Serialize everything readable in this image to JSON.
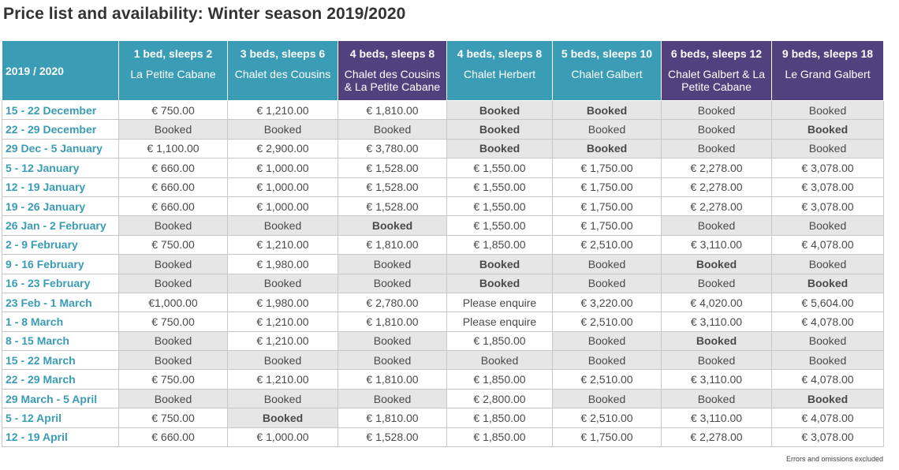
{
  "title": "Price list and availability: Winter season 2019/2020",
  "table": {
    "corner": "2019 / 2020",
    "columns": [
      {
        "beds": "1 bed, sleeps 2",
        "name": "La Petite Cabane",
        "color": "#3a9cb5"
      },
      {
        "beds": "3 beds, sleeps 6",
        "name": "Chalet des Cousins",
        "color": "#3a9cb5"
      },
      {
        "beds": "4 beds, sleeps 8",
        "name": "Chalet des Cousins & La Petite Cabane",
        "color": "#52417f"
      },
      {
        "beds": "4 beds, sleeps 8",
        "name": "Chalet Herbert",
        "color": "#3a9cb5"
      },
      {
        "beds": "5 beds, sleeps 10",
        "name": "Chalet Galbert",
        "color": "#3a9cb5"
      },
      {
        "beds": "6 beds, sleeps 12",
        "name": "Chalet Galbert & La Petite Cabane",
        "color": "#52417f"
      },
      {
        "beds": "9 beds, sleeps 18",
        "name": "Le Grand Galbert",
        "color": "#52417f"
      }
    ],
    "rows": [
      {
        "week": "15 - 22 December",
        "cells": [
          {
            "text": "€ 750.00",
            "shade": false,
            "bold": false
          },
          {
            "text": "€ 1,210.00",
            "shade": false,
            "bold": false
          },
          {
            "text": "€ 1,810.00",
            "shade": false,
            "bold": false
          },
          {
            "text": "Booked",
            "shade": true,
            "bold": true
          },
          {
            "text": "Booked",
            "shade": true,
            "bold": true
          },
          {
            "text": "Booked",
            "shade": true,
            "bold": false
          },
          {
            "text": "Booked",
            "shade": true,
            "bold": false
          }
        ]
      },
      {
        "week": "22 - 29 December",
        "cells": [
          {
            "text": "Booked",
            "shade": true,
            "bold": false
          },
          {
            "text": "Booked",
            "shade": true,
            "bold": false
          },
          {
            "text": "Booked",
            "shade": true,
            "bold": false
          },
          {
            "text": "Booked",
            "shade": true,
            "bold": true
          },
          {
            "text": "Booked",
            "shade": true,
            "bold": false
          },
          {
            "text": "Booked",
            "shade": true,
            "bold": false
          },
          {
            "text": "Booked",
            "shade": true,
            "bold": true
          }
        ]
      },
      {
        "week": "29 Dec - 5 January",
        "cells": [
          {
            "text": "€ 1,100.00",
            "shade": false,
            "bold": false
          },
          {
            "text": "€ 2,900.00",
            "shade": false,
            "bold": false
          },
          {
            "text": "€ 3,780.00",
            "shade": false,
            "bold": false
          },
          {
            "text": "Booked",
            "shade": true,
            "bold": true
          },
          {
            "text": "Booked",
            "shade": true,
            "bold": true
          },
          {
            "text": "Booked",
            "shade": true,
            "bold": false
          },
          {
            "text": "Booked",
            "shade": true,
            "bold": false
          }
        ]
      },
      {
        "week": "5 - 12 January",
        "cells": [
          {
            "text": "€ 660.00",
            "shade": false,
            "bold": false
          },
          {
            "text": "€ 1,000.00",
            "shade": false,
            "bold": false
          },
          {
            "text": "€ 1,528.00",
            "shade": false,
            "bold": false
          },
          {
            "text": "€ 1,550.00",
            "shade": false,
            "bold": false
          },
          {
            "text": "€ 1,750.00",
            "shade": false,
            "bold": false
          },
          {
            "text": "€ 2,278.00",
            "shade": false,
            "bold": false
          },
          {
            "text": "€ 3,078.00",
            "shade": false,
            "bold": false
          }
        ]
      },
      {
        "week": "12 - 19 January",
        "cells": [
          {
            "text": "€ 660.00",
            "shade": false,
            "bold": false
          },
          {
            "text": "€ 1,000.00",
            "shade": false,
            "bold": false
          },
          {
            "text": "€ 1,528.00",
            "shade": false,
            "bold": false
          },
          {
            "text": "€ 1,550.00",
            "shade": false,
            "bold": false
          },
          {
            "text": "€ 1,750.00",
            "shade": false,
            "bold": false
          },
          {
            "text": "€ 2,278.00",
            "shade": false,
            "bold": false
          },
          {
            "text": "€ 3,078.00",
            "shade": false,
            "bold": false
          }
        ]
      },
      {
        "week": "19 - 26 January",
        "cells": [
          {
            "text": "€ 660.00",
            "shade": false,
            "bold": false
          },
          {
            "text": "€ 1,000.00",
            "shade": false,
            "bold": false
          },
          {
            "text": "€ 1,528.00",
            "shade": false,
            "bold": false
          },
          {
            "text": "€ 1,550.00",
            "shade": false,
            "bold": false
          },
          {
            "text": "€ 1,750.00",
            "shade": false,
            "bold": false
          },
          {
            "text": "€ 2,278.00",
            "shade": false,
            "bold": false
          },
          {
            "text": "€ 3,078.00",
            "shade": false,
            "bold": false
          }
        ]
      },
      {
        "week": "26 Jan - 2 February",
        "cells": [
          {
            "text": "Booked",
            "shade": true,
            "bold": false
          },
          {
            "text": "Booked",
            "shade": true,
            "bold": false
          },
          {
            "text": "Booked",
            "shade": true,
            "bold": true
          },
          {
            "text": "€ 1,550.00",
            "shade": false,
            "bold": false
          },
          {
            "text": "€ 1,750.00",
            "shade": false,
            "bold": false
          },
          {
            "text": "Booked",
            "shade": true,
            "bold": false
          },
          {
            "text": "Booked",
            "shade": true,
            "bold": false
          }
        ]
      },
      {
        "week": "2 - 9 February",
        "cells": [
          {
            "text": "€ 750.00",
            "shade": false,
            "bold": false
          },
          {
            "text": "€ 1,210.00",
            "shade": false,
            "bold": false
          },
          {
            "text": "€ 1,810.00",
            "shade": false,
            "bold": false
          },
          {
            "text": "€ 1,850.00",
            "shade": false,
            "bold": false
          },
          {
            "text": "€ 2,510.00",
            "shade": false,
            "bold": false
          },
          {
            "text": "€ 3,110.00",
            "shade": false,
            "bold": false
          },
          {
            "text": "€ 4,078.00",
            "shade": false,
            "bold": false
          }
        ]
      },
      {
        "week": "9 - 16 February",
        "cells": [
          {
            "text": "Booked",
            "shade": true,
            "bold": false
          },
          {
            "text": "€ 1,980.00",
            "shade": false,
            "bold": false
          },
          {
            "text": "Booked",
            "shade": true,
            "bold": false
          },
          {
            "text": "Booked",
            "shade": true,
            "bold": true
          },
          {
            "text": "Booked",
            "shade": true,
            "bold": false
          },
          {
            "text": "Booked",
            "shade": true,
            "bold": true
          },
          {
            "text": "Booked",
            "shade": true,
            "bold": false
          }
        ]
      },
      {
        "week": "16 - 23 February",
        "cells": [
          {
            "text": "Booked",
            "shade": true,
            "bold": false
          },
          {
            "text": "Booked",
            "shade": true,
            "bold": false
          },
          {
            "text": "Booked",
            "shade": true,
            "bold": false
          },
          {
            "text": "Booked",
            "shade": true,
            "bold": true
          },
          {
            "text": "Booked",
            "shade": true,
            "bold": false
          },
          {
            "text": "Booked",
            "shade": true,
            "bold": false
          },
          {
            "text": "Booked",
            "shade": true,
            "bold": true
          }
        ]
      },
      {
        "week": "23 Feb - 1 March",
        "cells": [
          {
            "text": "€1,000.00",
            "shade": false,
            "bold": false
          },
          {
            "text": "€ 1,980.00",
            "shade": false,
            "bold": false
          },
          {
            "text": "€ 2,780.00",
            "shade": false,
            "bold": false
          },
          {
            "text": "Please enquire",
            "shade": false,
            "bold": false
          },
          {
            "text": "€ 3,220.00",
            "shade": false,
            "bold": false
          },
          {
            "text": "€ 4,020.00",
            "shade": false,
            "bold": false
          },
          {
            "text": "€ 5,604.00",
            "shade": false,
            "bold": false
          }
        ]
      },
      {
        "week": "1 - 8 March",
        "cells": [
          {
            "text": "€ 750.00",
            "shade": false,
            "bold": false
          },
          {
            "text": "€ 1,210.00",
            "shade": false,
            "bold": false
          },
          {
            "text": "€ 1,810.00",
            "shade": false,
            "bold": false
          },
          {
            "text": "Please enquire",
            "shade": false,
            "bold": false
          },
          {
            "text": "€ 2,510.00",
            "shade": false,
            "bold": false
          },
          {
            "text": "€ 3,110.00",
            "shade": false,
            "bold": false
          },
          {
            "text": "€ 4,078.00",
            "shade": false,
            "bold": false
          }
        ]
      },
      {
        "week": "8 - 15 March",
        "cells": [
          {
            "text": "Booked",
            "shade": true,
            "bold": false
          },
          {
            "text": "€ 1,210.00",
            "shade": false,
            "bold": false
          },
          {
            "text": "Booked",
            "shade": true,
            "bold": false
          },
          {
            "text": "€ 1,850.00",
            "shade": false,
            "bold": false
          },
          {
            "text": "Booked",
            "shade": true,
            "bold": false
          },
          {
            "text": "Booked",
            "shade": true,
            "bold": true
          },
          {
            "text": "Booked",
            "shade": true,
            "bold": false
          }
        ]
      },
      {
        "week": "15 - 22 March",
        "cells": [
          {
            "text": "Booked",
            "shade": true,
            "bold": false
          },
          {
            "text": "Booked",
            "shade": true,
            "bold": false
          },
          {
            "text": "Booked",
            "shade": true,
            "bold": false
          },
          {
            "text": "Booked",
            "shade": true,
            "bold": false
          },
          {
            "text": "Booked",
            "shade": true,
            "bold": false
          },
          {
            "text": "Booked",
            "shade": true,
            "bold": false
          },
          {
            "text": "Booked",
            "shade": true,
            "bold": false
          }
        ]
      },
      {
        "week": "22 - 29 March",
        "cells": [
          {
            "text": "€ 750.00",
            "shade": false,
            "bold": false
          },
          {
            "text": "€ 1,210.00",
            "shade": false,
            "bold": false
          },
          {
            "text": "€ 1,810.00",
            "shade": false,
            "bold": false
          },
          {
            "text": "€ 1,850.00",
            "shade": false,
            "bold": false
          },
          {
            "text": "€ 2,510.00",
            "shade": false,
            "bold": false
          },
          {
            "text": "€ 3,110.00",
            "shade": false,
            "bold": false
          },
          {
            "text": "€ 4,078.00",
            "shade": false,
            "bold": false
          }
        ]
      },
      {
        "week": "29 March - 5 April",
        "cells": [
          {
            "text": "Booked",
            "shade": true,
            "bold": false
          },
          {
            "text": "Booked",
            "shade": true,
            "bold": false
          },
          {
            "text": "Booked",
            "shade": true,
            "bold": false
          },
          {
            "text": "€ 2,800.00",
            "shade": false,
            "bold": false
          },
          {
            "text": "Booked",
            "shade": true,
            "bold": false
          },
          {
            "text": "Booked",
            "shade": true,
            "bold": false
          },
          {
            "text": "Booked",
            "shade": true,
            "bold": true
          }
        ]
      },
      {
        "week": "5 - 12 April",
        "cells": [
          {
            "text": "€ 750.00",
            "shade": false,
            "bold": false
          },
          {
            "text": "Booked",
            "shade": true,
            "bold": true
          },
          {
            "text": "€ 1,810.00",
            "shade": false,
            "bold": false
          },
          {
            "text": "€ 1,850.00",
            "shade": false,
            "bold": false
          },
          {
            "text": "€ 2,510.00",
            "shade": false,
            "bold": false
          },
          {
            "text": "€ 3,110.00",
            "shade": false,
            "bold": false
          },
          {
            "text": "€ 4,078.00",
            "shade": false,
            "bold": false
          }
        ]
      },
      {
        "week": "12 - 19 April",
        "cells": [
          {
            "text": "€ 660.00",
            "shade": false,
            "bold": false
          },
          {
            "text": "€ 1,000.00",
            "shade": false,
            "bold": false
          },
          {
            "text": "€ 1,528.00",
            "shade": false,
            "bold": false
          },
          {
            "text": "€ 1,850.00",
            "shade": false,
            "bold": false
          },
          {
            "text": "€ 1,750.00",
            "shade": false,
            "bold": false
          },
          {
            "text": "€ 2,278.00",
            "shade": false,
            "bold": false
          },
          {
            "text": "€ 3,078.00",
            "shade": false,
            "bold": false
          }
        ]
      }
    ]
  },
  "footnote": "Errors and omissions excluded"
}
